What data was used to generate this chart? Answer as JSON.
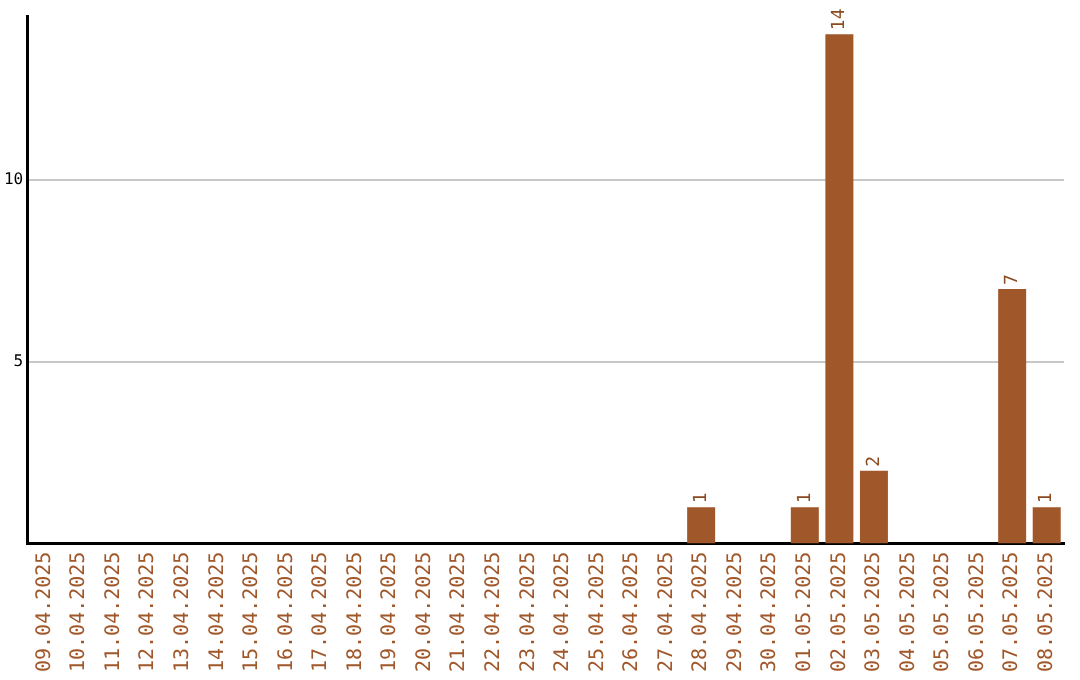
{
  "chart_data": {
    "type": "bar",
    "categories": [
      "09.04.2025",
      "10.04.2025",
      "11.04.2025",
      "12.04.2025",
      "13.04.2025",
      "14.04.2025",
      "15.04.2025",
      "16.04.2025",
      "17.04.2025",
      "18.04.2025",
      "19.04.2025",
      "20.04.2025",
      "21.04.2025",
      "22.04.2025",
      "23.04.2025",
      "24.04.2025",
      "25.04.2025",
      "26.04.2025",
      "27.04.2025",
      "28.04.2025",
      "29.04.2025",
      "30.04.2025",
      "01.05.2025",
      "02.05.2025",
      "03.05.2025",
      "04.05.2025",
      "05.05.2025",
      "06.05.2025",
      "07.05.2025",
      "08.05.2025"
    ],
    "values": [
      0,
      0,
      0,
      0,
      0,
      0,
      0,
      0,
      0,
      0,
      0,
      0,
      0,
      0,
      0,
      0,
      0,
      0,
      0,
      1,
      0,
      0,
      1,
      14,
      2,
      0,
      0,
      0,
      7,
      1
    ],
    "value_labels": [
      null,
      null,
      null,
      null,
      null,
      null,
      null,
      null,
      null,
      null,
      null,
      null,
      null,
      null,
      null,
      null,
      null,
      null,
      null,
      "1",
      null,
      null,
      "1",
      "14",
      "2",
      null,
      null,
      null,
      "7",
      "1"
    ],
    "color": "#a0572a",
    "ylim": [
      0,
      14.5
    ],
    "yticks": [
      5,
      10
    ],
    "grid": "y",
    "legend": false
  }
}
